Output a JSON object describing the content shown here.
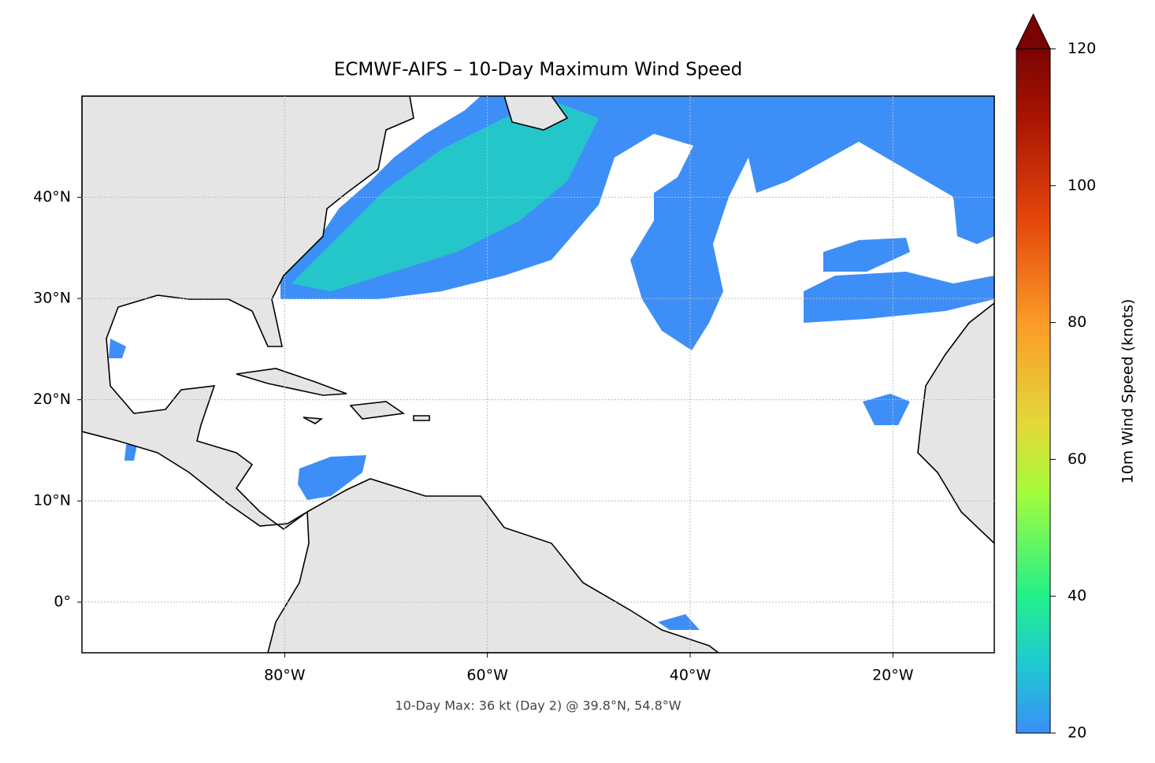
{
  "chart_data": {
    "type": "map",
    "title": "ECMWF-AIFS – 10-Day Maximum Wind Speed",
    "subtitle": "10-Day Max: 36 kt (Day 2) @ 39.8°N, 54.8°W",
    "xlim": [
      -100,
      -10
    ],
    "ylim": [
      -5,
      50
    ],
    "xticks": [
      {
        "value": -80,
        "label": "80°W"
      },
      {
        "value": -60,
        "label": "60°W"
      },
      {
        "value": -40,
        "label": "40°W"
      },
      {
        "value": -20,
        "label": "20°W"
      }
    ],
    "yticks": [
      {
        "value": 0,
        "label": "0°"
      },
      {
        "value": 10,
        "label": "10°N"
      },
      {
        "value": 20,
        "label": "20°N"
      },
      {
        "value": 30,
        "label": "30°N"
      },
      {
        "value": 40,
        "label": "40°N"
      }
    ],
    "grid": true,
    "colorbar": {
      "label": "10m Wind Speed (knots)",
      "lim": [
        20,
        120
      ],
      "ticks": [
        20,
        40,
        60,
        80,
        100,
        120
      ]
    }
  }
}
